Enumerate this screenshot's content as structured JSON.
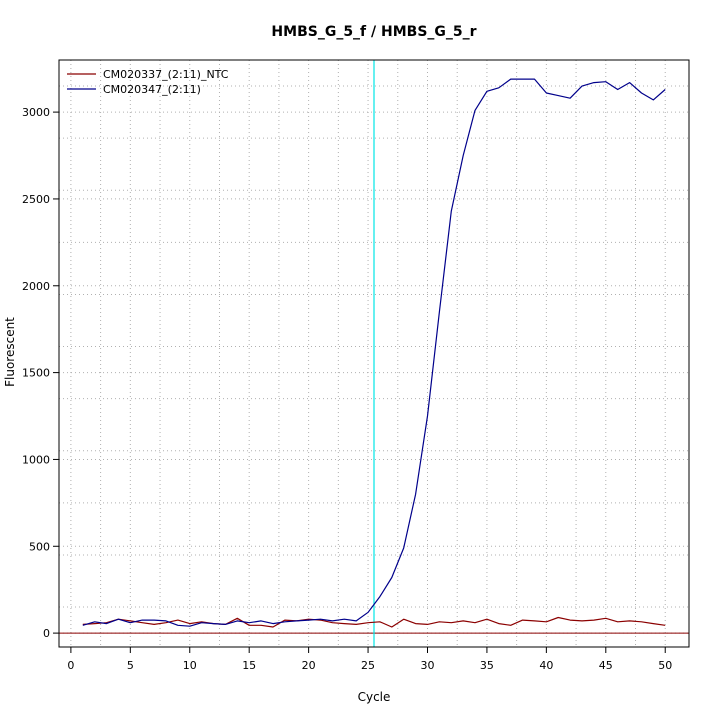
{
  "chart_data": {
    "type": "line",
    "title": "HMBS_G_5_f / HMBS_G_5_r",
    "xlabel": "Cycle",
    "ylabel": "Fluorescent",
    "xlim": [
      -1,
      52
    ],
    "ylim": [
      -80,
      3300
    ],
    "x_ticks": [
      0,
      5,
      10,
      15,
      20,
      25,
      30,
      35,
      40,
      45,
      50
    ],
    "y_ticks": [
      0,
      500,
      1000,
      1500,
      2000,
      2500,
      3000
    ],
    "grid": true,
    "grid_x": [
      2.5,
      7.5,
      12.5,
      17.5,
      22.5,
      27.5,
      32.5,
      37.5,
      42.5,
      47.5
    ],
    "grid_y": [
      150,
      450,
      750,
      1050,
      1350,
      1650,
      1950,
      2250,
      2550,
      2850,
      3150
    ],
    "legend_position": "top-left",
    "threshold_cycle": 25.5,
    "baseline": 0,
    "colors": {
      "threshold": "#00e5e5",
      "baseline": "#8b0000"
    },
    "x": [
      1,
      2,
      3,
      4,
      5,
      6,
      7,
      8,
      9,
      10,
      11,
      12,
      13,
      14,
      15,
      16,
      17,
      18,
      19,
      20,
      21,
      22,
      23,
      24,
      25,
      26,
      27,
      28,
      29,
      30,
      31,
      32,
      33,
      34,
      35,
      36,
      37,
      38,
      39,
      40,
      41,
      42,
      43,
      44,
      45,
      46,
      47,
      48,
      49,
      50
    ],
    "series": [
      {
        "name": "CM020337_(2:11)_NTC",
        "color": "#8b0000",
        "values": [
          50,
          55,
          60,
          80,
          70,
          60,
          50,
          60,
          75,
          55,
          65,
          55,
          50,
          85,
          45,
          45,
          35,
          75,
          70,
          80,
          75,
          60,
          55,
          50,
          60,
          65,
          35,
          80,
          55,
          50,
          65,
          60,
          70,
          60,
          80,
          55,
          45,
          75,
          70,
          65,
          90,
          75,
          70,
          75,
          85,
          65,
          70,
          65,
          55,
          45
        ]
      },
      {
        "name": "CM020347_(2:11)",
        "color": "#00008b",
        "values": [
          45,
          65,
          55,
          80,
          60,
          75,
          75,
          70,
          45,
          40,
          60,
          55,
          50,
          70,
          60,
          70,
          55,
          65,
          70,
          75,
          80,
          70,
          80,
          70,
          120,
          210,
          320,
          490,
          800,
          1250,
          1850,
          2430,
          2750,
          3010,
          3120,
          3140,
          3190,
          3190,
          3190,
          3110,
          3095,
          3080,
          3150,
          3170,
          3175,
          3130,
          3170,
          3110,
          3070,
          3130
        ]
      }
    ]
  }
}
